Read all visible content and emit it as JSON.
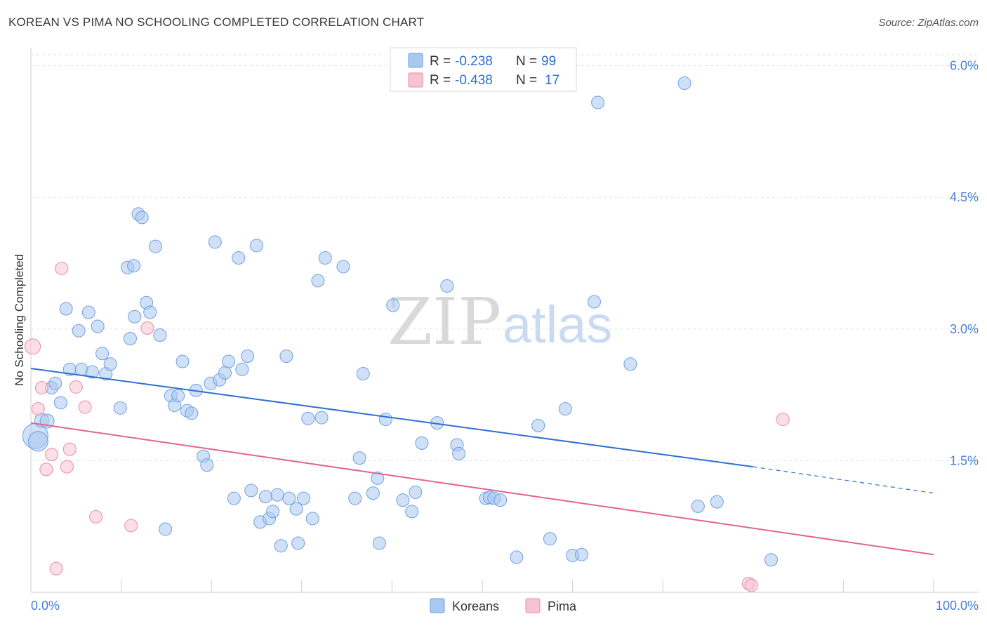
{
  "title": "KOREAN VS PIMA NO SCHOOLING COMPLETED CORRELATION CHART",
  "source": "Source: ZipAtlas.com",
  "watermark": {
    "zip": "ZIP",
    "atlas": "atlas"
  },
  "legend": {
    "rows": [
      {
        "r_label": "R =",
        "r_value": "-0.238",
        "n_label": "N =",
        "n_value": "99",
        "color": "#a9c8f0",
        "stroke": "#6f9ee0"
      },
      {
        "r_label": "R =",
        "r_value": "-0.438",
        "n_label": "N =",
        "n_value": "17",
        "color": "#f7c3d2",
        "stroke": "#e98aa6"
      }
    ]
  },
  "bottom_legend": [
    {
      "label": "Koreans",
      "color": "#a9c8f0",
      "stroke": "#6f9ee0"
    },
    {
      "label": "Pima",
      "color": "#f7c3d2",
      "stroke": "#e98aa6"
    }
  ],
  "chart_data": {
    "type": "scatter",
    "title": "KOREAN VS PIMA NO SCHOOLING COMPLETED CORRELATION CHART",
    "xlabel": "",
    "ylabel": "No Schooling Completed",
    "xlim": [
      0,
      100
    ],
    "ylim": [
      0,
      6.3
    ],
    "x_tick_labels": [
      "0.0%",
      "100.0%"
    ],
    "y_ticks": [
      1.5,
      3.0,
      4.5,
      6.0
    ],
    "y_tick_labels": [
      "1.5%",
      "3.0%",
      "4.5%",
      "6.0%"
    ],
    "grid": true,
    "series": [
      {
        "name": "Koreans",
        "color": "#a9c8f0",
        "stroke": "#6f9ee0",
        "trend": {
          "x0": 0,
          "y0": 2.55,
          "x1": 80,
          "y1": 1.43,
          "dash_to": 100,
          "dash_y": 1.13,
          "color": "#2f6fd0"
        },
        "points": [
          [
            0.5,
            1.78,
            18
          ],
          [
            0.8,
            1.72,
            14
          ],
          [
            1.2,
            1.96,
            10
          ],
          [
            1.8,
            1.95,
            10
          ],
          [
            2.3,
            2.33,
            9
          ],
          [
            2.7,
            2.38,
            9
          ],
          [
            3.3,
            2.16,
            9
          ],
          [
            3.9,
            3.23,
            9
          ],
          [
            4.3,
            2.54,
            9
          ],
          [
            5.3,
            2.98,
            9
          ],
          [
            5.6,
            2.54,
            9
          ],
          [
            6.4,
            3.19,
            9
          ],
          [
            6.8,
            2.51,
            9
          ],
          [
            7.4,
            3.03,
            9
          ],
          [
            7.9,
            2.72,
            9
          ],
          [
            8.3,
            2.49,
            9
          ],
          [
            8.8,
            2.6,
            9
          ],
          [
            9.9,
            2.1,
            9
          ],
          [
            10.7,
            3.7,
            9
          ],
          [
            11.4,
            3.72,
            9
          ],
          [
            11.0,
            2.89,
            9
          ],
          [
            11.5,
            3.14,
            9
          ],
          [
            11.9,
            4.31,
            9
          ],
          [
            12.3,
            4.27,
            9
          ],
          [
            12.8,
            3.3,
            9
          ],
          [
            13.2,
            3.19,
            9
          ],
          [
            13.8,
            3.94,
            9
          ],
          [
            14.3,
            2.93,
            9
          ],
          [
            14.9,
            0.72,
            9
          ],
          [
            15.5,
            2.24,
            9
          ],
          [
            15.9,
            2.13,
            9
          ],
          [
            16.3,
            2.24,
            9
          ],
          [
            16.8,
            2.63,
            9
          ],
          [
            17.3,
            2.07,
            9
          ],
          [
            17.8,
            2.04,
            9
          ],
          [
            18.3,
            2.3,
            9
          ],
          [
            19.1,
            1.55,
            9
          ],
          [
            19.5,
            1.45,
            9
          ],
          [
            19.9,
            2.38,
            9
          ],
          [
            20.4,
            3.99,
            9
          ],
          [
            20.9,
            2.42,
            9
          ],
          [
            21.5,
            2.5,
            9
          ],
          [
            21.9,
            2.63,
            9
          ],
          [
            22.5,
            1.07,
            9
          ],
          [
            23.0,
            3.81,
            9
          ],
          [
            23.4,
            2.54,
            9
          ],
          [
            24.0,
            2.69,
            9
          ],
          [
            24.4,
            1.16,
            9
          ],
          [
            25.0,
            3.95,
            9
          ],
          [
            25.4,
            0.8,
            9
          ],
          [
            26.0,
            1.09,
            9
          ],
          [
            26.4,
            0.84,
            9
          ],
          [
            26.8,
            0.92,
            9
          ],
          [
            27.3,
            1.11,
            9
          ],
          [
            27.7,
            0.53,
            9
          ],
          [
            28.3,
            2.69,
            9
          ],
          [
            28.6,
            1.07,
            9
          ],
          [
            29.4,
            0.95,
            9
          ],
          [
            29.6,
            0.56,
            9
          ],
          [
            30.2,
            1.07,
            9
          ],
          [
            30.7,
            1.98,
            9
          ],
          [
            31.2,
            0.84,
            9
          ],
          [
            31.8,
            3.55,
            9
          ],
          [
            32.2,
            1.99,
            9
          ],
          [
            32.6,
            3.81,
            9
          ],
          [
            34.6,
            3.71,
            9
          ],
          [
            35.9,
            1.07,
            9
          ],
          [
            36.4,
            1.53,
            9
          ],
          [
            36.8,
            2.49,
            9
          ],
          [
            37.9,
            1.13,
            9
          ],
          [
            38.4,
            1.3,
            9
          ],
          [
            38.6,
            0.56,
            9
          ],
          [
            39.3,
            1.97,
            9
          ],
          [
            40.1,
            3.27,
            9
          ],
          [
            41.2,
            1.05,
            9
          ],
          [
            42.2,
            0.92,
            9
          ],
          [
            42.6,
            1.14,
            9
          ],
          [
            43.3,
            1.7,
            9
          ],
          [
            45.0,
            1.93,
            9
          ],
          [
            46.1,
            3.49,
            9
          ],
          [
            47.2,
            1.68,
            9
          ],
          [
            47.4,
            1.58,
            9
          ],
          [
            50.4,
            1.07,
            9
          ],
          [
            50.8,
            1.08,
            9
          ],
          [
            51.3,
            1.07,
            9
          ],
          [
            52.0,
            1.05,
            9
          ],
          [
            53.8,
            0.4,
            9
          ],
          [
            56.2,
            1.9,
            9
          ],
          [
            57.5,
            0.61,
            9
          ],
          [
            59.2,
            2.09,
            9
          ],
          [
            60.0,
            0.42,
            9
          ],
          [
            61.0,
            0.43,
            9
          ],
          [
            62.4,
            3.31,
            9
          ],
          [
            62.8,
            5.58,
            9
          ],
          [
            66.4,
            2.6,
            9
          ],
          [
            72.4,
            5.8,
            9
          ],
          [
            73.9,
            0.98,
            9
          ],
          [
            76.0,
            1.03,
            9
          ],
          [
            82.0,
            0.37,
            9
          ]
        ]
      },
      {
        "name": "Pima",
        "color": "#f7c3d2",
        "stroke": "#e98aa6",
        "trend": {
          "x0": 0,
          "y0": 1.93,
          "x1": 100,
          "y1": 0.43,
          "color": "#e0668f"
        },
        "points": [
          [
            0.2,
            2.8,
            11
          ],
          [
            0.8,
            2.09,
            9
          ],
          [
            1.2,
            2.33,
            9
          ],
          [
            2.3,
            1.57,
            9
          ],
          [
            1.7,
            1.4,
            9
          ],
          [
            2.8,
            0.27,
            9
          ],
          [
            3.4,
            3.69,
            9
          ],
          [
            4.0,
            1.43,
            9
          ],
          [
            4.3,
            1.63,
            9
          ],
          [
            5.0,
            2.34,
            9
          ],
          [
            6.0,
            2.11,
            9
          ],
          [
            7.2,
            0.86,
            9
          ],
          [
            11.1,
            0.76,
            9
          ],
          [
            12.9,
            3.01,
            9
          ],
          [
            79.5,
            0.1,
            9
          ],
          [
            79.8,
            0.08,
            9
          ],
          [
            83.3,
            1.97,
            9
          ]
        ]
      }
    ]
  }
}
